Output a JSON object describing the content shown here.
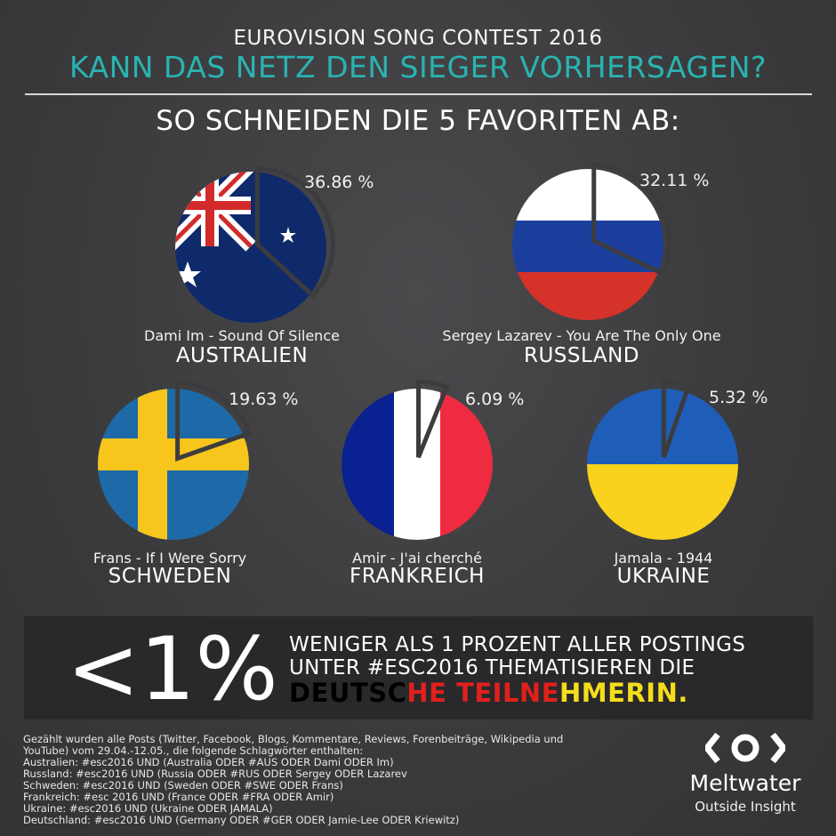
{
  "header": {
    "event_title": "EUROVISION SONG CONTEST 2016",
    "question": "KANN DAS NETZ DEN SIEGER VORHERSAGEN?",
    "subtitle": "SO SCHNEIDEN DIE 5 FAVORITEN AB:"
  },
  "chart_data": {
    "type": "pie",
    "title": "SO SCHNEIDEN DIE 5 FAVORITEN AB:",
    "unit": "%",
    "items": [
      {
        "country": "AUSTRALIEN",
        "song": "Dami Im - Sound Of Silence",
        "value": 36.86,
        "label": "36.86 %",
        "flag": "australia-flag"
      },
      {
        "country": "RUSSLAND",
        "song": "Sergey Lazarev - You Are The Only One",
        "value": 32.11,
        "label": "32.11 %",
        "flag": "russia-flag"
      },
      {
        "country": "SCHWEDEN",
        "song": "Frans - If I Were Sorry",
        "value": 19.63,
        "label": "19.63 %",
        "flag": "sweden-flag"
      },
      {
        "country": "FRANKREICH",
        "song": "Amir - J'ai cherché",
        "value": 6.09,
        "label": "6.09 %",
        "flag": "france-flag"
      },
      {
        "country": "UKRAINE",
        "song": "Jamala - 1944",
        "value": 5.32,
        "label": "5.32 %",
        "flag": "ukraine-flag"
      }
    ]
  },
  "callout": {
    "big_value": "<1%",
    "line1": "WENIGER ALS 1 PROZENT ALLER POSTINGS",
    "line2": "UNTER #ESC2016 THEMATISIEREN DIE",
    "line3_black": "DEUTSC",
    "line3_red": "HE TEILNE",
    "line3_gold": "HMERIN."
  },
  "notes": [
    "Gezählt wurden alle Posts (Twitter, Facebook, Blogs, Kommentare, Reviews, Forenbeiträge, Wikipedia und",
    "YouTube) vom 29.04.-12.05., die folgende Schlagwörter enthalten:",
    "Australien: #esc2016 UND (Australia ODER #AUS ODER Dami ODER Im)",
    "Russland: #esc2016 UND (Russia ODER #RUS ODER Sergey ODER Lazarev",
    "Schweden: #esc2016 UND (Sweden ODER #SWE ODER Frans)",
    "Frankreich:  #esc 2016 UND (France ODER #FRA ODER Amir)",
    "Ukraine: #esc2016 UND (Ukraine ODER JAMALA)",
    "Deutschland: #esc2016 UND (Germany ODER #GER ODER Jamie-Lee ODER Kriewitz)"
  ],
  "brand": {
    "logo_icon": "meltwater-logo-icon",
    "name": "Meltwater",
    "tagline": "Outside Insight"
  },
  "colors": {
    "accent": "#2ab3b1",
    "australia_blue": "#0f2a6b",
    "russia_white": "#ffffff",
    "russia_blue": "#1c3f9e",
    "russia_red": "#d5322a",
    "sweden_blue": "#1e6aa8",
    "sweden_yellow": "#f7c51b",
    "france_blue": "#0a2191",
    "france_red": "#ef2b42",
    "ukraine_blue": "#1e5eb9",
    "ukraine_yellow": "#f8d21c",
    "german_red": "#e0201c",
    "german_gold": "#f5dd1b"
  }
}
